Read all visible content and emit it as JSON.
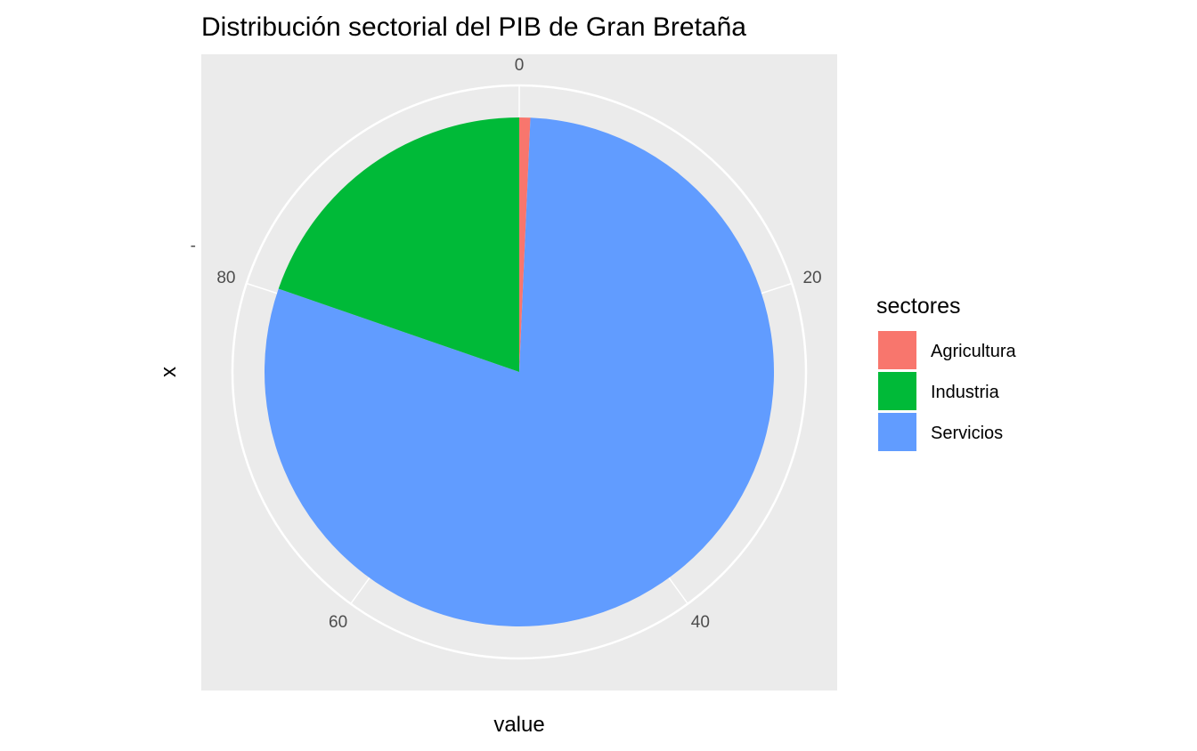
{
  "chart_data": {
    "type": "pie",
    "title": "Distribución sectorial del PIB de  Gran Bretaña",
    "xlabel": "value",
    "ylabel": "x",
    "y_tick": "-",
    "theta_ticks": [
      0,
      20,
      40,
      60,
      80
    ],
    "theta_tick_labels": [
      "0",
      "20",
      "40",
      "60",
      "80"
    ],
    "theta_range": [
      0,
      100
    ],
    "grid": true,
    "legend": {
      "title": "sectores",
      "placement": "right"
    },
    "slices": [
      {
        "label": "Agricultura",
        "value": 0.7,
        "color": "#F8766D"
      },
      {
        "label": "Servicios",
        "value": 79.6,
        "color": "#619CFF"
      },
      {
        "label": "Industria",
        "value": 19.7,
        "color": "#00BA38"
      }
    ],
    "legend_order": [
      "Agricultura",
      "Industria",
      "Servicios"
    ],
    "panel_color": "#EBEBEB",
    "grid_color": "#FFFFFF"
  }
}
